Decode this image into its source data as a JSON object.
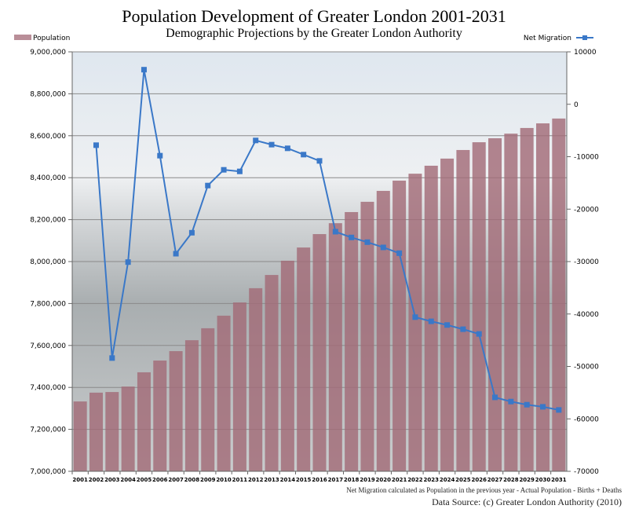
{
  "chart_data": {
    "type": "bar+line",
    "title": "Population Development of Greater London 2001-2031",
    "subtitle": "Demographic Projections by the Greater London Authority",
    "categories": [
      "2001",
      "2002",
      "2003",
      "2004",
      "2005",
      "2006",
      "2007",
      "2008",
      "2009",
      "2010",
      "2011",
      "2012",
      "2013",
      "2014",
      "2015",
      "2016",
      "2017",
      "2018",
      "2019",
      "2020",
      "2021",
      "2022",
      "2023",
      "2024",
      "2025",
      "2026",
      "2027",
      "2028",
      "2029",
      "2030",
      "2031"
    ],
    "series": [
      {
        "name": "Population",
        "type": "bar",
        "axis": "left",
        "color": "#a26b78",
        "values": [
          7333000,
          7375000,
          7378000,
          7404000,
          7472000,
          7528000,
          7573000,
          7625000,
          7682000,
          7742000,
          7805000,
          7873000,
          7936000,
          8004000,
          8067000,
          8131000,
          8183000,
          8236000,
          8285000,
          8337000,
          8386000,
          8419000,
          8457000,
          8491000,
          8532000,
          8569000,
          8588000,
          8610000,
          8637000,
          8659000,
          8682000
        ]
      },
      {
        "name": "Net Migration",
        "type": "line",
        "axis": "right",
        "color": "#3a78c8",
        "values": [
          null,
          -7800,
          -48400,
          -30100,
          6600,
          -9800,
          -28500,
          -24500,
          -15500,
          -12500,
          -12800,
          -6900,
          -7700,
          -8400,
          -9600,
          -10800,
          -24300,
          -25400,
          -26300,
          -27300,
          -28400,
          -40600,
          -41400,
          -42100,
          -42900,
          -43800,
          -55900,
          -56700,
          -57300,
          -57700,
          -58300
        ]
      }
    ],
    "y_left": {
      "range": [
        7000000,
        9000000
      ],
      "ticks": [
        "7,000,000",
        "7,200,000",
        "7,400,000",
        "7,600,000",
        "7,800,000",
        "8,000,000",
        "8,200,000",
        "8,400,000",
        "8,600,000",
        "8,800,000",
        "9,000,000"
      ]
    },
    "y_right": {
      "range": [
        -70000,
        10000
      ],
      "ticks": [
        "-70000",
        "-60000",
        "-50000",
        "-40000",
        "-30000",
        "-20000",
        "-10000",
        "0",
        "10000"
      ]
    },
    "grid": true,
    "legend": {
      "left": "top-left",
      "right": "top-right"
    }
  },
  "notes": {
    "formula": "Net Migration calculated as Population in the previous year  - Actual Population - Births + Deaths",
    "source": "Data Source: (c) Greater London Authority (2010)"
  }
}
